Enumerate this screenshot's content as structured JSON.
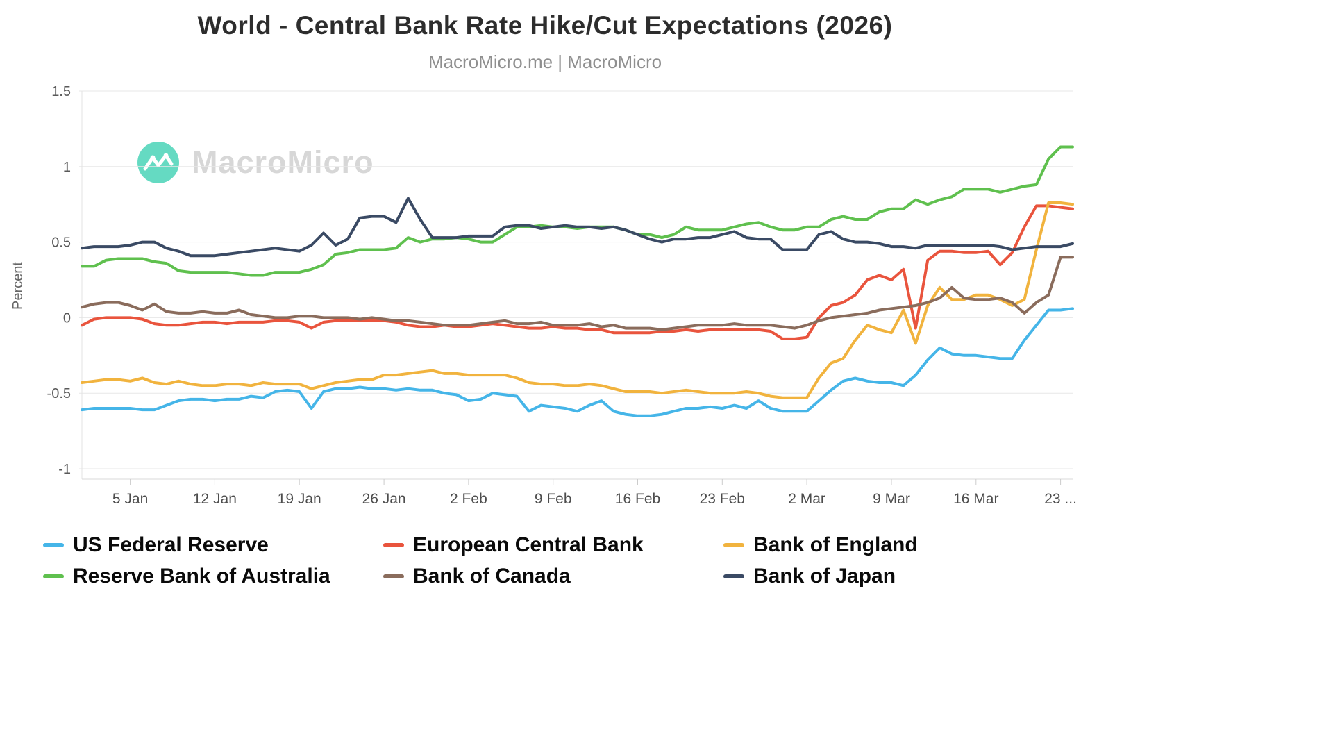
{
  "watermark": {
    "brand": "MacroMicro",
    "logo_color": "#3fd2b4"
  },
  "chart_data": {
    "type": "line",
    "title": "World - Central Bank Rate Hike/Cut Expectations (2026)",
    "subtitle": "MacroMicro.me | MacroMicro",
    "ylabel": "Percent",
    "ylim": [
      -1,
      1.5
    ],
    "y_ticks": [
      1.5,
      1,
      0.5,
      0,
      -0.5,
      -1
    ],
    "grid": "horizontal",
    "legend_position": "bottom",
    "x_ticks": [
      {
        "index": 4,
        "label": "5 Jan"
      },
      {
        "index": 11,
        "label": "12 Jan"
      },
      {
        "index": 18,
        "label": "19 Jan"
      },
      {
        "index": 25,
        "label": "26 Jan"
      },
      {
        "index": 32,
        "label": "2 Feb"
      },
      {
        "index": 39,
        "label": "9 Feb"
      },
      {
        "index": 46,
        "label": "16 Feb"
      },
      {
        "index": 53,
        "label": "23 Feb"
      },
      {
        "index": 60,
        "label": "2 Mar"
      },
      {
        "index": 67,
        "label": "9 Mar"
      },
      {
        "index": 74,
        "label": "16 Mar"
      },
      {
        "index": 81,
        "label": "23 ..."
      }
    ],
    "dates": [
      "1 Jan",
      "2 Jan",
      "3 Jan",
      "4 Jan",
      "5 Jan",
      "6 Jan",
      "7 Jan",
      "8 Jan",
      "9 Jan",
      "10 Jan",
      "11 Jan",
      "12 Jan",
      "13 Jan",
      "14 Jan",
      "15 Jan",
      "16 Jan",
      "17 Jan",
      "18 Jan",
      "19 Jan",
      "20 Jan",
      "21 Jan",
      "22 Jan",
      "23 Jan",
      "24 Jan",
      "25 Jan",
      "26 Jan",
      "27 Jan",
      "28 Jan",
      "29 Jan",
      "30 Jan",
      "31 Jan",
      "1 Feb",
      "2 Feb",
      "3 Feb",
      "4 Feb",
      "5 Feb",
      "6 Feb",
      "7 Feb",
      "8 Feb",
      "9 Feb",
      "10 Feb",
      "11 Feb",
      "12 Feb",
      "13 Feb",
      "14 Feb",
      "15 Feb",
      "16 Feb",
      "17 Feb",
      "18 Feb",
      "19 Feb",
      "20 Feb",
      "21 Feb",
      "22 Feb",
      "23 Feb",
      "24 Feb",
      "25 Feb",
      "26 Feb",
      "27 Feb",
      "28 Feb",
      "1 Mar",
      "2 Mar",
      "3 Mar",
      "4 Mar",
      "5 Mar",
      "6 Mar",
      "7 Mar",
      "8 Mar",
      "9 Mar",
      "10 Mar",
      "11 Mar",
      "12 Mar",
      "13 Mar",
      "14 Mar",
      "15 Mar",
      "16 Mar",
      "17 Mar",
      "18 Mar",
      "19 Mar",
      "20 Mar",
      "21 Mar",
      "22 Mar",
      "23 Mar",
      "24 Mar"
    ],
    "series": [
      {
        "name": "US Federal Reserve",
        "color": "#45b5e8",
        "values": [
          -0.61,
          -0.6,
          -0.6,
          -0.6,
          -0.6,
          -0.61,
          -0.61,
          -0.58,
          -0.55,
          -0.54,
          -0.54,
          -0.55,
          -0.54,
          -0.54,
          -0.52,
          -0.53,
          -0.49,
          -0.48,
          -0.49,
          -0.6,
          -0.49,
          -0.47,
          -0.47,
          -0.46,
          -0.47,
          -0.47,
          -0.48,
          -0.47,
          -0.48,
          -0.48,
          -0.5,
          -0.51,
          -0.55,
          -0.54,
          -0.5,
          -0.51,
          -0.52,
          -0.62,
          -0.58,
          -0.59,
          -0.6,
          -0.62,
          -0.58,
          -0.55,
          -0.62,
          -0.64,
          -0.65,
          -0.65,
          -0.64,
          -0.62,
          -0.6,
          -0.6,
          -0.59,
          -0.6,
          -0.58,
          -0.6,
          -0.55,
          -0.6,
          -0.62,
          -0.62,
          -0.62,
          -0.55,
          -0.48,
          -0.42,
          -0.4,
          -0.42,
          -0.43,
          -0.43,
          -0.45,
          -0.38,
          -0.28,
          -0.2,
          -0.24,
          -0.25,
          -0.25,
          -0.26,
          -0.27,
          -0.27,
          -0.15,
          -0.05,
          0.05,
          0.05,
          0.06
        ]
      },
      {
        "name": "European Central Bank",
        "color": "#e9543d",
        "values": [
          -0.05,
          -0.01,
          0.0,
          0.0,
          0.0,
          -0.01,
          -0.04,
          -0.05,
          -0.05,
          -0.04,
          -0.03,
          -0.03,
          -0.04,
          -0.03,
          -0.03,
          -0.03,
          -0.02,
          -0.02,
          -0.03,
          -0.07,
          -0.03,
          -0.02,
          -0.02,
          -0.02,
          -0.02,
          -0.02,
          -0.03,
          -0.05,
          -0.06,
          -0.06,
          -0.05,
          -0.06,
          -0.06,
          -0.05,
          -0.04,
          -0.05,
          -0.06,
          -0.07,
          -0.07,
          -0.06,
          -0.07,
          -0.07,
          -0.08,
          -0.08,
          -0.1,
          -0.1,
          -0.1,
          -0.1,
          -0.09,
          -0.09,
          -0.08,
          -0.09,
          -0.08,
          -0.08,
          -0.08,
          -0.08,
          -0.08,
          -0.09,
          -0.14,
          -0.14,
          -0.13,
          0.0,
          0.08,
          0.1,
          0.15,
          0.25,
          0.28,
          0.25,
          0.32,
          -0.07,
          0.38,
          0.44,
          0.44,
          0.43,
          0.43,
          0.44,
          0.35,
          0.43,
          0.6,
          0.74,
          0.74,
          0.73,
          0.72
        ]
      },
      {
        "name": "Bank of England",
        "color": "#f1b33e",
        "values": [
          -0.43,
          -0.42,
          -0.41,
          -0.41,
          -0.42,
          -0.4,
          -0.43,
          -0.44,
          -0.42,
          -0.44,
          -0.45,
          -0.45,
          -0.44,
          -0.44,
          -0.45,
          -0.43,
          -0.44,
          -0.44,
          -0.44,
          -0.47,
          -0.45,
          -0.43,
          -0.42,
          -0.41,
          -0.41,
          -0.38,
          -0.38,
          -0.37,
          -0.36,
          -0.35,
          -0.37,
          -0.37,
          -0.38,
          -0.38,
          -0.38,
          -0.38,
          -0.4,
          -0.43,
          -0.44,
          -0.44,
          -0.45,
          -0.45,
          -0.44,
          -0.45,
          -0.47,
          -0.49,
          -0.49,
          -0.49,
          -0.5,
          -0.49,
          -0.48,
          -0.49,
          -0.5,
          -0.5,
          -0.5,
          -0.49,
          -0.5,
          -0.52,
          -0.53,
          -0.53,
          -0.53,
          -0.4,
          -0.3,
          -0.27,
          -0.15,
          -0.05,
          -0.08,
          -0.1,
          0.05,
          -0.17,
          0.08,
          0.2,
          0.12,
          0.12,
          0.15,
          0.15,
          0.12,
          0.08,
          0.12,
          0.45,
          0.76,
          0.76,
          0.75
        ]
      },
      {
        "name": "Reserve Bank of Australia",
        "color": "#5fc04e",
        "values": [
          0.34,
          0.34,
          0.38,
          0.39,
          0.39,
          0.39,
          0.37,
          0.36,
          0.31,
          0.3,
          0.3,
          0.3,
          0.3,
          0.29,
          0.28,
          0.28,
          0.3,
          0.3,
          0.3,
          0.32,
          0.35,
          0.42,
          0.43,
          0.45,
          0.45,
          0.45,
          0.46,
          0.53,
          0.5,
          0.52,
          0.52,
          0.53,
          0.52,
          0.5,
          0.5,
          0.55,
          0.6,
          0.6,
          0.61,
          0.6,
          0.6,
          0.59,
          0.6,
          0.6,
          0.6,
          0.58,
          0.55,
          0.55,
          0.53,
          0.55,
          0.6,
          0.58,
          0.58,
          0.58,
          0.6,
          0.62,
          0.63,
          0.6,
          0.58,
          0.58,
          0.6,
          0.6,
          0.65,
          0.67,
          0.65,
          0.65,
          0.7,
          0.72,
          0.72,
          0.78,
          0.75,
          0.78,
          0.8,
          0.85,
          0.85,
          0.85,
          0.83,
          0.85,
          0.87,
          0.88,
          1.05,
          1.13,
          1.13
        ]
      },
      {
        "name": "Bank of Canada",
        "color": "#8a6c5c",
        "values": [
          0.07,
          0.09,
          0.1,
          0.1,
          0.08,
          0.05,
          0.09,
          0.04,
          0.03,
          0.03,
          0.04,
          0.03,
          0.03,
          0.05,
          0.02,
          0.01,
          0.0,
          0.0,
          0.01,
          0.01,
          0.0,
          0.0,
          0.0,
          -0.01,
          0.0,
          -0.01,
          -0.02,
          -0.02,
          -0.03,
          -0.04,
          -0.05,
          -0.05,
          -0.05,
          -0.04,
          -0.03,
          -0.02,
          -0.04,
          -0.04,
          -0.03,
          -0.05,
          -0.05,
          -0.05,
          -0.04,
          -0.06,
          -0.05,
          -0.07,
          -0.07,
          -0.07,
          -0.08,
          -0.07,
          -0.06,
          -0.05,
          -0.05,
          -0.05,
          -0.04,
          -0.05,
          -0.05,
          -0.05,
          -0.06,
          -0.07,
          -0.05,
          -0.02,
          0.0,
          0.01,
          0.02,
          0.03,
          0.05,
          0.06,
          0.07,
          0.08,
          0.1,
          0.13,
          0.2,
          0.13,
          0.12,
          0.12,
          0.13,
          0.1,
          0.03,
          0.1,
          0.15,
          0.4,
          0.4
        ]
      },
      {
        "name": "Bank of Japan",
        "color": "#3a4a64",
        "values": [
          0.46,
          0.47,
          0.47,
          0.47,
          0.48,
          0.5,
          0.5,
          0.46,
          0.44,
          0.41,
          0.41,
          0.41,
          0.42,
          0.43,
          0.44,
          0.45,
          0.46,
          0.45,
          0.44,
          0.48,
          0.56,
          0.48,
          0.52,
          0.66,
          0.67,
          0.67,
          0.63,
          0.79,
          0.65,
          0.53,
          0.53,
          0.53,
          0.54,
          0.54,
          0.54,
          0.6,
          0.61,
          0.61,
          0.59,
          0.6,
          0.61,
          0.6,
          0.6,
          0.59,
          0.6,
          0.58,
          0.55,
          0.52,
          0.5,
          0.52,
          0.52,
          0.53,
          0.53,
          0.55,
          0.57,
          0.53,
          0.52,
          0.52,
          0.45,
          0.45,
          0.45,
          0.55,
          0.57,
          0.52,
          0.5,
          0.5,
          0.49,
          0.47,
          0.47,
          0.46,
          0.48,
          0.48,
          0.48,
          0.48,
          0.48,
          0.48,
          0.47,
          0.45,
          0.46,
          0.47,
          0.47,
          0.47,
          0.49
        ]
      }
    ]
  }
}
